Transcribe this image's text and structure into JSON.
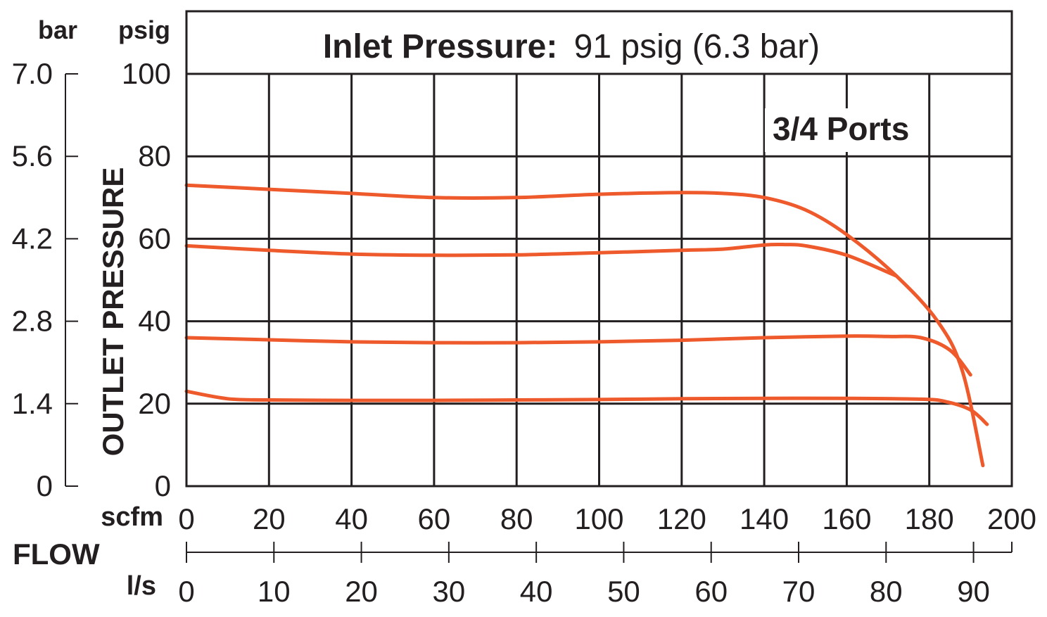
{
  "chart_data": {
    "type": "line",
    "title_bold": "Inlet Pressure:",
    "title_rest": "91 psig (6.3 bar)",
    "annotation": "3/4 Ports",
    "ylabel": "OUTLET PRESSURE",
    "y_unit_primary": "psig",
    "y_unit_secondary": "bar",
    "x_unit_primary": "scfm",
    "x_unit_secondary": "l/s",
    "xlabel": "FLOW",
    "ylim": [
      0,
      100
    ],
    "xlim": [
      0,
      200
    ],
    "y_ticks_psig": [
      "0",
      "20",
      "40",
      "60",
      "80",
      "100"
    ],
    "y_ticks_bar": [
      "0",
      "1.4",
      "2.8",
      "4.2",
      "5.6",
      "7.0"
    ],
    "x_ticks_scfm": [
      "0",
      "20",
      "40",
      "60",
      "80",
      "100",
      "120",
      "140",
      "160",
      "180",
      "200"
    ],
    "x_ticks_ls": [
      "0",
      "10",
      "20",
      "30",
      "40",
      "50",
      "60",
      "70",
      "80",
      "90"
    ],
    "x_ticks_ls_values": [
      0,
      10,
      20,
      30,
      40,
      50,
      60,
      70,
      80,
      90
    ],
    "ls_per_scfm": 0.4719,
    "line_color": "#ee5a2b",
    "grid": true,
    "series": [
      {
        "x": [
          0,
          20,
          40,
          60,
          80,
          100,
          120,
          130,
          140,
          150,
          160,
          172,
          182,
          188,
          193
        ],
        "y": [
          73,
          72,
          71,
          70,
          70,
          70.8,
          71.2,
          71,
          70,
          67,
          61,
          51,
          40,
          28,
          5
        ]
      },
      {
        "x": [
          0,
          20,
          40,
          60,
          80,
          100,
          120,
          130,
          140,
          145,
          150,
          160,
          172
        ],
        "y": [
          58.3,
          57.2,
          56.3,
          56,
          56.1,
          56.6,
          57.2,
          57.5,
          58.5,
          58.6,
          58.3,
          56,
          51
        ]
      },
      {
        "x": [
          0,
          20,
          40,
          60,
          80,
          100,
          120,
          140,
          160,
          170,
          178,
          185,
          190
        ],
        "y": [
          36,
          35.5,
          35,
          34.8,
          34.8,
          35,
          35.4,
          36,
          36.4,
          36.3,
          36,
          33,
          27
        ]
      },
      {
        "x": [
          0,
          10,
          20,
          40,
          60,
          80,
          100,
          120,
          140,
          160,
          178,
          184,
          190,
          194
        ],
        "y": [
          23,
          21.2,
          20.9,
          20.8,
          20.8,
          20.9,
          21,
          21.2,
          21.3,
          21.3,
          21.1,
          20.5,
          18.5,
          15
        ]
      }
    ]
  }
}
